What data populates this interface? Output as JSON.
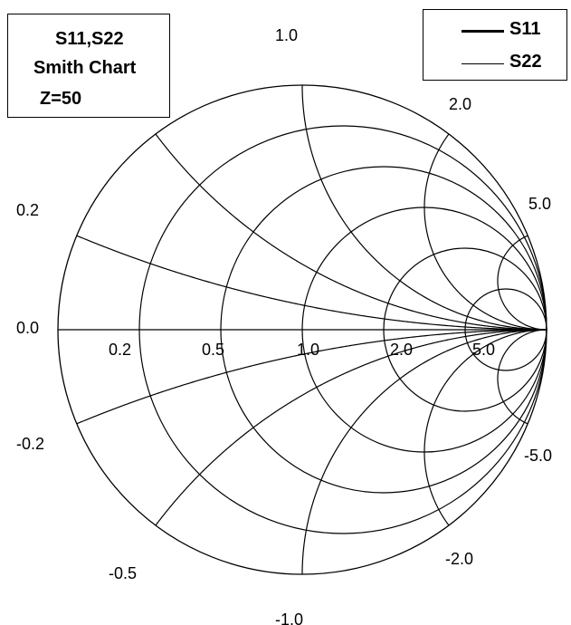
{
  "chart_data": {
    "type": "smith",
    "title_lines": [
      "S11,S22",
      "Smith Chart",
      "Z=50"
    ],
    "reference_impedance": 50,
    "resistance_circles": [
      0.2,
      0.5,
      1.0,
      2.0,
      5.0
    ],
    "reactance_arcs": [
      0.2,
      0.5,
      1.0,
      2.0,
      5.0,
      -0.2,
      -0.5,
      -1.0,
      -2.0,
      -5.0
    ],
    "resistance_labels": [
      "0.2",
      "0.5",
      "1.0",
      "2.0",
      "5.0"
    ],
    "reactance_labels": {
      "pos_0_2": "0.2",
      "pos_1_0": "1.0",
      "pos_2_0": "2.0",
      "pos_5_0": "5.0",
      "zero": "0.0",
      "neg_0_2": "-0.2",
      "neg_0_5": "-0.5",
      "neg_1_0": "-1.0",
      "neg_2_0": "-2.0",
      "neg_5_0": "-5.0"
    },
    "legend": {
      "position": "top-right",
      "entries": [
        {
          "name": "S11",
          "line_weight": "thick"
        },
        {
          "name": "S22",
          "line_weight": "thin"
        }
      ]
    },
    "series": [
      {
        "name": "S11",
        "values": []
      },
      {
        "name": "S22",
        "values": []
      }
    ],
    "grid_color": "#000000"
  }
}
